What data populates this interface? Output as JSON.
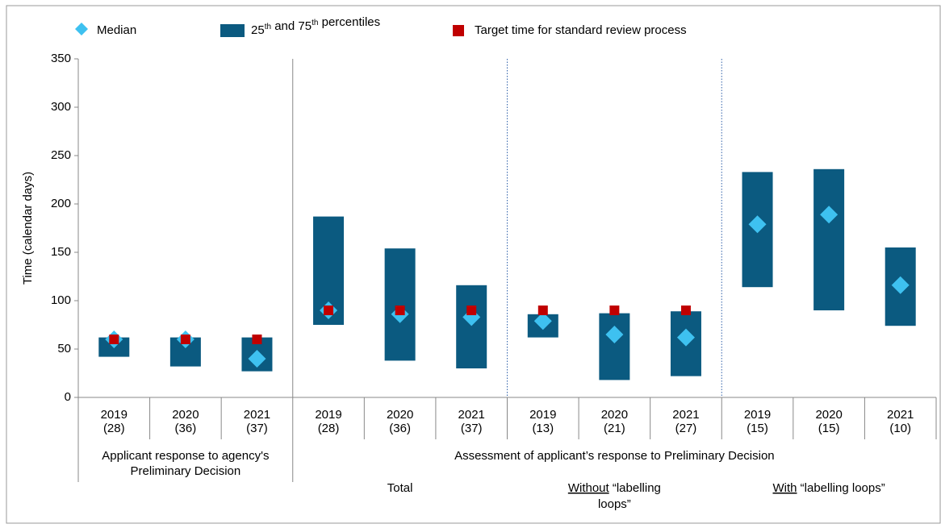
{
  "chart_data": {
    "type": "floating-bar",
    "y_axis_label": "Time (calendar days)",
    "ylim": [
      0,
      350
    ],
    "yticks": [
      0,
      50,
      100,
      150,
      200,
      250,
      300,
      350
    ],
    "categories": [
      [
        "2019",
        "(28)"
      ],
      [
        "2020",
        "(36)"
      ],
      [
        "2021",
        "(37)"
      ],
      [
        "2019",
        "(28)"
      ],
      [
        "2020",
        "(36)"
      ],
      [
        "2021",
        "(37)"
      ],
      [
        "2019",
        "(13)"
      ],
      [
        "2020",
        "(21)"
      ],
      [
        "2021",
        "(27)"
      ],
      [
        "2019",
        "(15)"
      ],
      [
        "2020",
        "(15)"
      ],
      [
        "2021",
        "(10)"
      ]
    ],
    "groups": [
      {
        "lines": [
          "Applicant response to agency's",
          "Preliminary Decision"
        ],
        "start": 0,
        "end": 2
      },
      {
        "lines": [
          "Assessment of applicant’s response to Preliminary Decision"
        ],
        "start": 3,
        "end": 11
      }
    ],
    "subgroups": [
      {
        "lines": [
          "Total"
        ],
        "start": 3,
        "end": 5
      },
      {
        "underlined": "Without",
        "lines": [
          " “labelling",
          "loops”"
        ],
        "start": 6,
        "end": 8
      },
      {
        "underlined": "With",
        "lines": [
          " “labelling loops”"
        ],
        "start": 9,
        "end": 11
      }
    ],
    "series": [
      {
        "name": "Median",
        "color": "#3ec1f0",
        "values": [
          60,
          60,
          40,
          90,
          86,
          83,
          79,
          65,
          62,
          179,
          189,
          116
        ]
      },
      {
        "name": "25th and 75th percentiles",
        "color": "#0b5a80",
        "low": [
          42,
          32,
          27,
          75,
          38,
          30,
          62,
          18,
          22,
          114,
          90,
          74
        ],
        "high": [
          62,
          62,
          62,
          187,
          154,
          116,
          86,
          87,
          89,
          233,
          236,
          155
        ]
      },
      {
        "name": "Target time for standard review process",
        "color": "#c00000",
        "values": [
          60,
          60,
          60,
          90,
          90,
          90,
          90,
          90,
          90,
          null,
          null,
          null
        ]
      }
    ]
  }
}
